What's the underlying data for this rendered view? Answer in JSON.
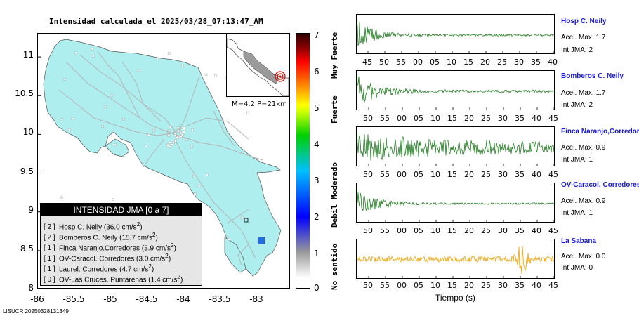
{
  "map": {
    "title": "Intensidad calculada el 2025/03/28_07:13:47_AM",
    "lat_ticks": [
      "11",
      "10.5",
      "10",
      "9.5",
      "9",
      "8.5",
      "8"
    ],
    "lon_ticks": [
      "-86",
      "-85.5",
      "-85",
      "-84.5",
      "-84",
      "-83.5",
      "-83"
    ],
    "lon_range": [
      -86,
      -82.55
    ],
    "lat_range": [
      8,
      11.3
    ],
    "land_color": "#aeeeee",
    "road_color": "#b4b4b4",
    "inset_quake_info": "M=4.2 P=21km",
    "marked_station": {
      "lon": -82.95,
      "lat": 8.63,
      "color": "#1f6fe0"
    }
  },
  "legend": {
    "header": "INTENSIDAD JMA [0 a 7]",
    "items": [
      {
        "int": "[ 2 ]",
        "text": "Hosp C. Neily (36.0 cm/s",
        "sup": "2",
        "close": ")"
      },
      {
        "int": "[ 2 ]",
        "text": "Bomberos C. Neily (15.7 cm/s",
        "sup": "2",
        "close": ")"
      },
      {
        "int": "[ 1 ]",
        "text": "Finca Naranjo.Corredores (3.9 cm/s",
        "sup": "2",
        "close": ")"
      },
      {
        "int": "[ 1 ]",
        "text": "OV-Caracol. Corredores (3.0 cm/s",
        "sup": "2",
        "close": ")"
      },
      {
        "int": "[ 1 ]",
        "text": "Laurel. Corredores (4.7 cm/s",
        "sup": "2",
        "close": ")"
      },
      {
        "int": "[ 0 ]",
        "text": "OV-Las Cruces. Puntarenas (1.4 cm/s",
        "sup": "2",
        "close": ")"
      }
    ]
  },
  "colorbar": {
    "ticks": [
      "0",
      "1",
      "2",
      "3",
      "4",
      "5",
      "6",
      "7"
    ],
    "labels": [
      "No sentido",
      "Debil",
      "Moderado",
      "Fuerte",
      "Muy Fuerte"
    ]
  },
  "seismograms": {
    "time_label": "Tiempo (s)",
    "acc_prefix": "Acel. Max. ",
    "int_prefix": "Int JMA: ",
    "stations": [
      {
        "name": "Hosp C. Neily",
        "acc": "1.7",
        "int": "2",
        "color": "#1e7a1e",
        "ticks": [
          "45",
          "50",
          "55",
          "00",
          "05",
          "10",
          "15",
          "20",
          "25",
          "30",
          "35",
          "40"
        ]
      },
      {
        "name": "Bomberos C. Neily",
        "acc": "1.7",
        "int": "2",
        "color": "#1e7a1e",
        "ticks": [
          "50",
          "55",
          "00",
          "05",
          "10",
          "15",
          "20",
          "25",
          "30",
          "35",
          "40",
          "45"
        ]
      },
      {
        "name": "Finca Naranjo,Corredores",
        "acc": "0.9",
        "int": "1",
        "color": "#1e7a1e",
        "ticks": [
          "50",
          "55",
          "00",
          "05",
          "10",
          "15",
          "20",
          "25",
          "30",
          "35",
          "40",
          "45"
        ]
      },
      {
        "name": "OV-Caracol, Corredores",
        "acc": "0.9",
        "int": "1",
        "color": "#1e7a1e",
        "ticks": [
          "50",
          "55",
          "00",
          "05",
          "10",
          "15",
          "20",
          "25",
          "30",
          "35",
          "40",
          "45"
        ]
      },
      {
        "name": "La Sabana",
        "acc": "0.0",
        "int": "0",
        "color": "#f0a000",
        "ticks": [
          "50",
          "55",
          "00",
          "05",
          "10",
          "15",
          "20",
          "25",
          "30",
          "35",
          "40",
          "45"
        ]
      }
    ]
  },
  "footer": "LISUCR 20250328131349"
}
